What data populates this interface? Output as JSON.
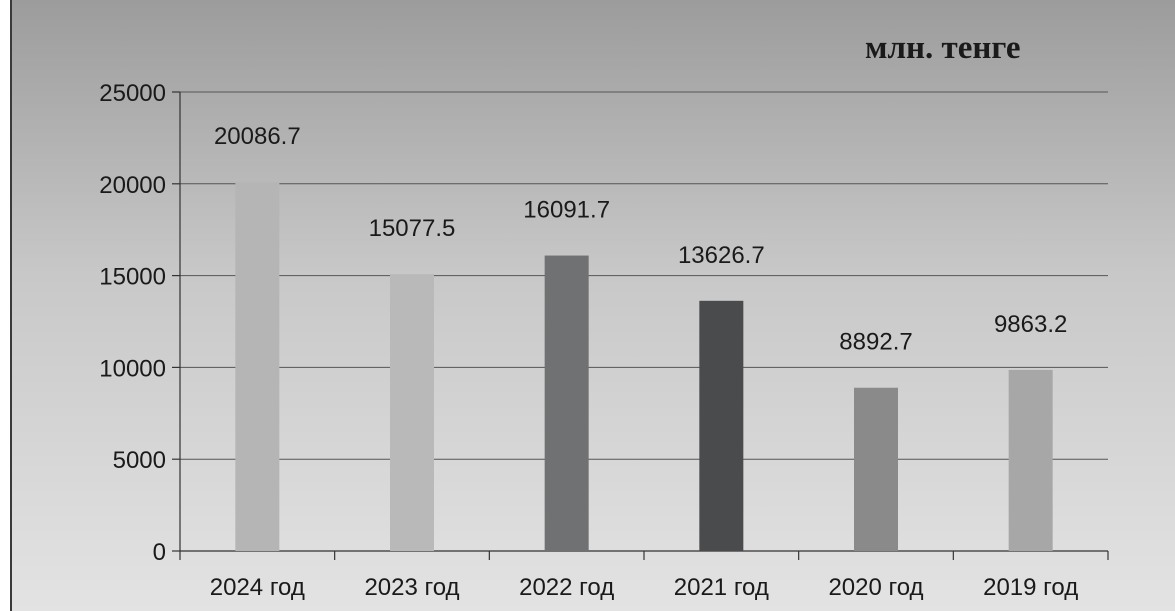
{
  "chart_data": {
    "type": "bar",
    "title": "",
    "unit_label": "млн. тенге",
    "xlabel": "",
    "ylabel": "",
    "categories": [
      "2024 год",
      "2023 год",
      "2022 год",
      "2021 год",
      "2020 год",
      "2019 год"
    ],
    "values": [
      20086.7,
      15077.5,
      16091.7,
      13626.7,
      8892.7,
      9863.2
    ],
    "data_labels": [
      "20086.7",
      "15077.5",
      "16091.7",
      "13626.7",
      "8892.7",
      "9863.2"
    ],
    "bar_colors": [
      "#b5b5b5",
      "#b9b9b9",
      "#707173",
      "#4a4b4d",
      "#8a8a8a",
      "#a7a7a7"
    ],
    "ylim": [
      0,
      25000
    ],
    "yticks": [
      0,
      5000,
      10000,
      15000,
      20000,
      25000
    ],
    "ytick_labels": [
      "0",
      "5000",
      "10000",
      "15000",
      "20000",
      "25000"
    ],
    "grid": true,
    "legend": "none"
  }
}
